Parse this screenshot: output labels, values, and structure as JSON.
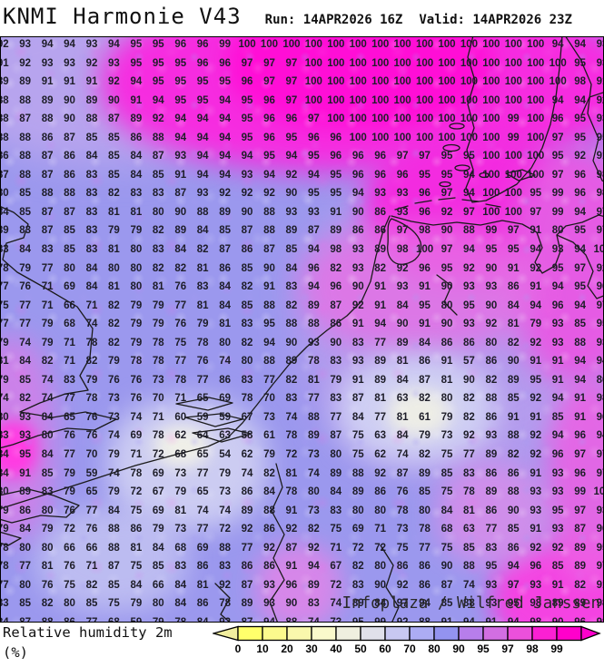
{
  "header": {
    "title": "KNMI Harmonie V43",
    "run_label": "Run: 14APR2026 16Z",
    "valid_label": "Valid: 14APR2026 23Z"
  },
  "footer": {
    "variable_label": "Relative humidity 2m",
    "units_label": "(%)"
  },
  "watermark": "Infoplaza / Wilfred Janssen",
  "palette": {
    "base_80_90": "#9B98EE",
    "purple_90_95": "#BC9DEE",
    "orchid_95_97": "#E283E8",
    "pink_97_98": "#F06AE2",
    "magenta_98_100": "#FF0ED6",
    "light_60_70": "#C9C9F4",
    "pale_40_50": "#EFEFE8",
    "coastline": "#1A1A1A"
  },
  "colorbar": {
    "tick_labels": [
      "0",
      "10",
      "20",
      "30",
      "40",
      "50",
      "60",
      "70",
      "80",
      "90",
      "95",
      "97",
      "98",
      "99"
    ],
    "segment_colors": [
      "#FFFF6B",
      "#FCFA8D",
      "#FAF8AC",
      "#FAF9CB",
      "#EFEFDF",
      "#E0E0EA",
      "#C8C8F2",
      "#ACACF4",
      "#9393F0",
      "#B77EEB",
      "#D26EE2",
      "#EC50DB",
      "#FB20D3",
      "#FF00CB"
    ],
    "left_arrow_color": "#F1EE9E",
    "right_arrow_color": "#FF00CB"
  },
  "chart_data": {
    "type": "heatmap",
    "title": "Relative humidity 2m (%)",
    "model": "KNMI Harmonie V43",
    "run": "14APR2026 16Z",
    "valid": "14APR2026 23Z",
    "unit": "%",
    "legend_position": "bottom",
    "scale_ticks": [
      0,
      10,
      20,
      30,
      40,
      50,
      60,
      70,
      80,
      90,
      95,
      97,
      98,
      99
    ],
    "rows": [
      [
        92,
        93,
        94,
        94,
        93,
        94,
        95,
        95,
        96,
        96,
        99,
        100,
        100,
        100,
        100,
        100,
        100,
        100,
        100,
        100,
        100,
        100,
        100,
        100,
        100,
        94,
        94,
        93
      ],
      [
        91,
        92,
        93,
        93,
        92,
        93,
        95,
        95,
        95,
        96,
        96,
        97,
        97,
        97,
        100,
        100,
        100,
        100,
        100,
        100,
        100,
        100,
        100,
        100,
        100,
        100,
        95,
        93
      ],
      [
        89,
        89,
        91,
        91,
        91,
        92,
        94,
        95,
        95,
        95,
        95,
        96,
        97,
        97,
        100,
        100,
        100,
        100,
        100,
        100,
        100,
        100,
        100,
        100,
        100,
        100,
        98,
        91
      ],
      [
        88,
        88,
        89,
        90,
        89,
        90,
        91,
        94,
        95,
        95,
        94,
        95,
        96,
        97,
        100,
        100,
        100,
        100,
        100,
        100,
        100,
        100,
        100,
        100,
        100,
        94,
        94,
        92
      ],
      [
        88,
        87,
        88,
        90,
        88,
        87,
        89,
        92,
        94,
        94,
        94,
        95,
        96,
        96,
        97,
        100,
        100,
        100,
        100,
        100,
        100,
        100,
        100,
        99,
        100,
        96,
        95,
        93
      ],
      [
        88,
        88,
        86,
        87,
        85,
        85,
        86,
        88,
        94,
        94,
        94,
        95,
        96,
        95,
        96,
        96,
        100,
        100,
        100,
        100,
        100,
        100,
        100,
        99,
        100,
        97,
        95,
        95
      ],
      [
        86,
        88,
        87,
        86,
        84,
        85,
        84,
        87,
        93,
        94,
        94,
        94,
        95,
        94,
        95,
        96,
        96,
        96,
        97,
        97,
        95,
        95,
        100,
        100,
        100,
        95,
        92,
        91
      ],
      [
        87,
        88,
        87,
        86,
        83,
        85,
        84,
        85,
        91,
        94,
        94,
        93,
        94,
        92,
        94,
        95,
        96,
        96,
        96,
        95,
        95,
        94,
        100,
        100,
        100,
        97,
        96,
        98
      ],
      [
        80,
        85,
        88,
        88,
        83,
        82,
        83,
        83,
        87,
        93,
        92,
        92,
        92,
        90,
        95,
        95,
        94,
        93,
        93,
        96,
        97,
        94,
        100,
        100,
        95,
        99,
        96,
        98
      ],
      [
        84,
        85,
        87,
        87,
        83,
        81,
        81,
        80,
        90,
        88,
        89,
        90,
        88,
        93,
        93,
        91,
        90,
        86,
        93,
        96,
        92,
        97,
        100,
        100,
        97,
        99,
        94,
        97
      ],
      [
        89,
        83,
        87,
        85,
        83,
        79,
        79,
        82,
        89,
        84,
        85,
        87,
        88,
        89,
        87,
        89,
        86,
        86,
        97,
        98,
        90,
        88,
        99,
        97,
        91,
        80,
        95,
        97
      ],
      [
        83,
        84,
        83,
        85,
        83,
        81,
        80,
        83,
        84,
        82,
        87,
        86,
        87,
        85,
        94,
        98,
        93,
        89,
        98,
        100,
        97,
        94,
        95,
        95,
        94,
        93,
        94,
        100
      ],
      [
        78,
        79,
        77,
        80,
        84,
        80,
        80,
        82,
        82,
        81,
        86,
        85,
        90,
        84,
        96,
        82,
        93,
        82,
        92,
        96,
        95,
        92,
        90,
        91,
        92,
        95,
        97,
        92
      ],
      [
        77,
        76,
        71,
        69,
        84,
        81,
        80,
        81,
        76,
        83,
        84,
        82,
        91,
        83,
        94,
        96,
        90,
        91,
        93,
        91,
        90,
        93,
        93,
        86,
        91,
        94,
        95,
        96
      ],
      [
        75,
        77,
        71,
        66,
        71,
        82,
        79,
        79,
        77,
        81,
        84,
        85,
        88,
        82,
        89,
        87,
        92,
        91,
        84,
        95,
        80,
        95,
        90,
        84,
        94,
        96,
        94,
        97
      ],
      [
        77,
        77,
        79,
        68,
        74,
        82,
        79,
        79,
        76,
        79,
        81,
        83,
        95,
        88,
        88,
        86,
        91,
        94,
        90,
        91,
        90,
        93,
        92,
        81,
        79,
        93,
        85,
        95
      ],
      [
        79,
        74,
        79,
        71,
        78,
        82,
        79,
        78,
        75,
        78,
        80,
        82,
        94,
        90,
        93,
        90,
        83,
        77,
        89,
        84,
        86,
        86,
        80,
        82,
        92,
        93,
        88,
        93
      ],
      [
        81,
        84,
        82,
        71,
        82,
        79,
        78,
        78,
        77,
        76,
        74,
        80,
        88,
        89,
        78,
        83,
        93,
        89,
        81,
        86,
        91,
        57,
        86,
        90,
        91,
        91,
        94,
        94
      ],
      [
        79,
        85,
        74,
        83,
        79,
        76,
        76,
        73,
        78,
        77,
        86,
        83,
        77,
        82,
        81,
        79,
        91,
        89,
        84,
        87,
        81,
        90,
        82,
        89,
        95,
        91,
        94,
        86
      ],
      [
        74,
        82,
        74,
        77,
        78,
        73,
        76,
        70,
        71,
        65,
        69,
        78,
        70,
        83,
        77,
        83,
        87,
        81,
        63,
        82,
        80,
        82,
        88,
        85,
        92,
        94,
        91,
        98
      ],
      [
        80,
        93,
        84,
        65,
        76,
        73,
        74,
        71,
        60,
        59,
        59,
        67,
        73,
        74,
        88,
        77,
        84,
        77,
        81,
        61,
        79,
        82,
        86,
        91,
        91,
        85,
        91,
        96
      ],
      [
        83,
        93,
        80,
        76,
        76,
        74,
        69,
        78,
        62,
        64,
        63,
        58,
        61,
        78,
        89,
        87,
        75,
        63,
        84,
        79,
        73,
        92,
        93,
        88,
        92,
        94,
        96,
        94
      ],
      [
        84,
        95,
        84,
        77,
        70,
        79,
        71,
        72,
        68,
        65,
        54,
        62,
        79,
        72,
        73,
        80,
        75,
        62,
        74,
        82,
        75,
        77,
        89,
        82,
        92,
        96,
        97,
        97
      ],
      [
        84,
        91,
        85,
        79,
        59,
        74,
        78,
        69,
        73,
        77,
        79,
        74,
        82,
        81,
        74,
        89,
        88,
        92,
        87,
        89,
        85,
        83,
        86,
        86,
        91,
        93,
        96,
        97
      ],
      [
        80,
        89,
        83,
        79,
        65,
        79,
        72,
        67,
        79,
        65,
        73,
        86,
        84,
        78,
        80,
        84,
        89,
        86,
        76,
        85,
        75,
        78,
        89,
        88,
        93,
        93,
        99,
        100
      ],
      [
        79,
        86,
        80,
        76,
        77,
        84,
        75,
        69,
        81,
        74,
        74,
        89,
        88,
        91,
        73,
        83,
        80,
        80,
        78,
        80,
        84,
        81,
        86,
        90,
        93,
        95,
        97,
        93
      ],
      [
        79,
        84,
        79,
        72,
        76,
        88,
        86,
        79,
        73,
        77,
        72,
        92,
        86,
        92,
        82,
        75,
        69,
        71,
        73,
        78,
        68,
        63,
        77,
        85,
        91,
        93,
        87,
        96
      ],
      [
        78,
        80,
        80,
        66,
        66,
        88,
        81,
        84,
        68,
        69,
        88,
        77,
        92,
        87,
        92,
        71,
        72,
        72,
        75,
        77,
        75,
        85,
        83,
        86,
        92,
        92,
        89,
        95
      ],
      [
        78,
        77,
        81,
        76,
        71,
        87,
        75,
        85,
        83,
        86,
        83,
        86,
        86,
        91,
        94,
        67,
        82,
        80,
        86,
        86,
        90,
        88,
        95,
        94,
        96,
        85,
        89,
        97
      ],
      [
        77,
        80,
        76,
        75,
        82,
        85,
        84,
        66,
        84,
        81,
        92,
        87,
        93,
        96,
        89,
        72,
        83,
        90,
        92,
        86,
        87,
        74,
        93,
        97,
        93,
        91,
        82,
        91
      ],
      [
        83,
        85,
        82,
        80,
        85,
        75,
        79,
        80,
        84,
        86,
        78,
        89,
        93,
        90,
        83,
        74,
        89,
        84,
        97,
        94,
        85,
        88,
        93,
        95,
        98,
        89,
        89,
        98
      ],
      [
        84,
        87,
        88,
        86,
        77,
        68,
        59,
        79,
        78,
        84,
        92,
        87,
        94,
        88,
        74,
        73,
        95,
        99,
        92,
        88,
        91,
        94,
        91,
        94,
        98,
        90,
        96,
        98
      ]
    ]
  }
}
